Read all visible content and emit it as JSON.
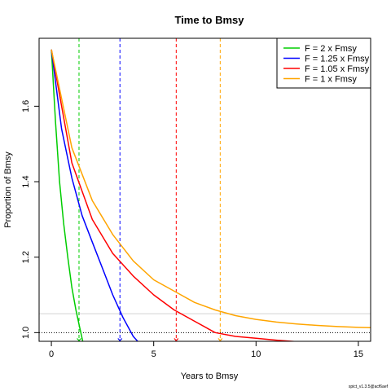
{
  "chart_data": {
    "type": "line",
    "title": "Time to Bmsy",
    "xlabel": "Years to Bmsy",
    "ylabel": "Proportion of Bmsy",
    "xlim": [
      -0.6,
      15.6
    ],
    "ylim": [
      0.977,
      1.78
    ],
    "xticks": [
      0,
      5,
      10,
      15
    ],
    "yticks": [
      1.0,
      1.2,
      1.4,
      1.6
    ],
    "grid": false,
    "legend_position": "top-right",
    "series": [
      {
        "name": "F = 2 x Fmsy",
        "color": "#00cd00",
        "x": [
          0,
          0.2,
          0.4,
          0.6,
          0.8,
          1.0,
          1.2,
          1.4,
          1.6
        ],
        "y": [
          1.75,
          1.56,
          1.4,
          1.29,
          1.2,
          1.12,
          1.06,
          1.01,
          0.96
        ],
        "time_to_bmsy": 1.35
      },
      {
        "name": "F = 1.25 x Fmsy",
        "color": "#0000ff",
        "x": [
          0,
          0.5,
          1.0,
          1.5,
          2.0,
          2.5,
          3.0,
          3.5,
          4.0,
          4.5
        ],
        "y": [
          1.75,
          1.54,
          1.41,
          1.31,
          1.24,
          1.17,
          1.1,
          1.04,
          0.99,
          0.96
        ],
        "time_to_bmsy": 3.35
      },
      {
        "name": "F = 1.05 x Fmsy",
        "color": "#ff0000",
        "x": [
          0,
          1,
          2,
          3,
          4,
          5,
          6,
          7,
          8,
          9,
          10,
          11,
          12
        ],
        "y": [
          1.75,
          1.45,
          1.3,
          1.21,
          1.15,
          1.1,
          1.06,
          1.03,
          1.0,
          0.99,
          0.985,
          0.98,
          0.976
        ],
        "time_to_bmsy": 6.1
      },
      {
        "name": "F = 1 x Fmsy",
        "color": "#ffa500",
        "x": [
          0,
          1,
          2,
          3,
          4,
          5,
          6,
          7,
          8,
          9,
          10,
          11,
          12,
          13,
          14,
          15,
          15.6
        ],
        "y": [
          1.75,
          1.49,
          1.35,
          1.26,
          1.19,
          1.14,
          1.11,
          1.08,
          1.06,
          1.045,
          1.035,
          1.028,
          1.023,
          1.019,
          1.016,
          1.014,
          1.013
        ],
        "time_to_bmsy": 8.25
      }
    ],
    "reference_lines": {
      "y_dotted": 1.0,
      "y_grey": 1.05
    },
    "footer": "spict_v1.3.5@acf6aef"
  }
}
